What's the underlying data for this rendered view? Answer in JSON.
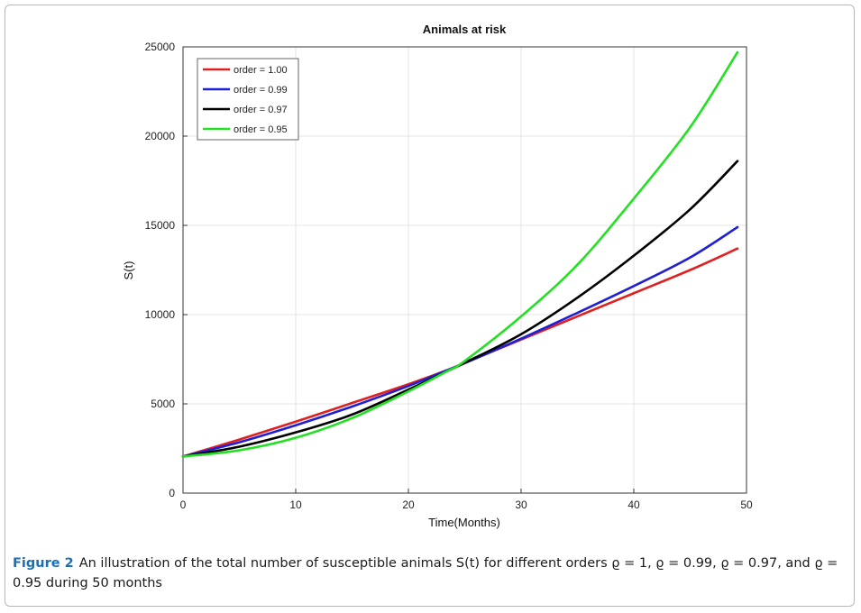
{
  "chart_data": {
    "type": "line",
    "title": "Animals at risk",
    "xlabel": "Time(Months)",
    "ylabel": "S(t)",
    "xlim": [
      0,
      50
    ],
    "ylim": [
      0,
      25000
    ],
    "xticks": [
      0,
      10,
      20,
      30,
      40,
      50
    ],
    "yticks": [
      0,
      5000,
      10000,
      15000,
      20000,
      25000
    ],
    "grid": true,
    "legend_position": "top-left",
    "x": [
      0,
      5,
      10,
      15,
      20,
      23.5,
      25,
      30,
      35,
      40,
      45,
      49.2
    ],
    "series": [
      {
        "name": "order = 1.00",
        "color": "#e02020",
        "values": [
          2050,
          3000,
          4000,
          5050,
          6100,
          6900,
          7300,
          8600,
          9900,
          11200,
          12500,
          13700
        ]
      },
      {
        "name": "order = 0.99",
        "color": "#1f1fd6",
        "values": [
          2050,
          2850,
          3800,
          4850,
          6000,
          6900,
          7280,
          8650,
          10100,
          11600,
          13200,
          14900
        ]
      },
      {
        "name": "order = 0.97",
        "color": "#000000",
        "values": [
          2050,
          2600,
          3400,
          4400,
          5800,
          6850,
          7300,
          8900,
          10950,
          13300,
          15900,
          18600
        ]
      },
      {
        "name": "order = 0.95",
        "color": "#22e022",
        "values": [
          2050,
          2400,
          3100,
          4200,
          5700,
          6850,
          7400,
          9900,
          12800,
          16500,
          20500,
          24700
        ]
      }
    ]
  },
  "caption": {
    "label": "Figure 2",
    "text": "An illustration of the total number of susceptible animals S(t) for different orders ϱ = 1, ϱ = 0.99, ϱ = 0.97, and ϱ = 0.95 during 50 months"
  }
}
